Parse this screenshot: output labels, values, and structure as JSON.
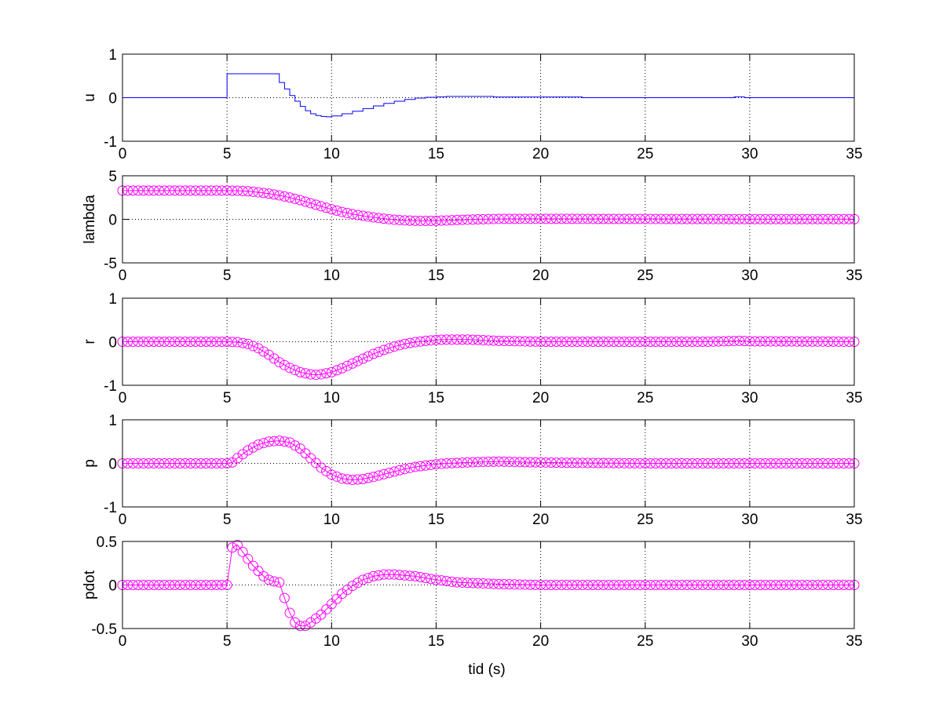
{
  "figure": {
    "background": "#ffffff",
    "xlabel": "tid (s)"
  },
  "chart_data": [
    {
      "type": "line",
      "ylabel": "u",
      "xlim": [
        0,
        35
      ],
      "ylim": [
        -1,
        1
      ],
      "xticks": [
        0,
        5,
        10,
        15,
        20,
        25,
        30,
        35
      ],
      "yticks": [
        -1,
        0,
        1
      ],
      "grid": true,
      "series": [
        {
          "color": "#0000ff",
          "style": "step",
          "marker": "none",
          "x": [
            0,
            5,
            7.5,
            7.75,
            8.0,
            8.25,
            8.5,
            8.75,
            9.0,
            9.25,
            9.5,
            9.75,
            10.0,
            10.5,
            11.0,
            11.5,
            12.0,
            12.5,
            13.0,
            13.5,
            14.0,
            14.5,
            15.0,
            15.5,
            16.0,
            17.75,
            22.0,
            29.25,
            29.75,
            35
          ],
          "y": [
            0,
            0.55,
            0.35,
            0.2,
            0.05,
            -0.08,
            -0.2,
            -0.3,
            -0.37,
            -0.41,
            -0.43,
            -0.44,
            -0.42,
            -0.37,
            -0.31,
            -0.25,
            -0.19,
            -0.13,
            -0.08,
            -0.04,
            -0.01,
            0.01,
            0.02,
            0.03,
            0.03,
            0.015,
            0.0,
            0.02,
            0.0,
            0.0
          ]
        }
      ]
    },
    {
      "type": "line",
      "ylabel": "lambda",
      "xlim": [
        0,
        35
      ],
      "ylim": [
        -5,
        5
      ],
      "xticks": [
        0,
        5,
        10,
        15,
        20,
        25,
        30,
        35
      ],
      "yticks": [
        -5,
        0,
        5
      ],
      "grid": true,
      "series": [
        {
          "color": "#ff00ff",
          "marker": "circle",
          "x": [
            0,
            1,
            2,
            3,
            4,
            5,
            5.5,
            6,
            6.5,
            7,
            7.5,
            8,
            8.5,
            9,
            9.5,
            10,
            10.5,
            11,
            11.5,
            12,
            12.5,
            13,
            13.5,
            14,
            14.5,
            15,
            15.5,
            16,
            16.5,
            17,
            18,
            19,
            20,
            22,
            25,
            28,
            30,
            35
          ],
          "y": [
            3.3,
            3.3,
            3.3,
            3.3,
            3.3,
            3.3,
            3.28,
            3.22,
            3.1,
            2.95,
            2.75,
            2.5,
            2.2,
            1.85,
            1.5,
            1.15,
            0.85,
            0.6,
            0.4,
            0.22,
            0.08,
            -0.05,
            -0.12,
            -0.17,
            -0.18,
            -0.17,
            -0.13,
            -0.08,
            -0.04,
            0.0,
            0.05,
            0.06,
            0.06,
            0.05,
            0.04,
            0.03,
            0.02,
            0.02
          ]
        }
      ]
    },
    {
      "type": "line",
      "ylabel": "r",
      "xlim": [
        0,
        35
      ],
      "ylim": [
        -1,
        1
      ],
      "xticks": [
        0,
        5,
        10,
        15,
        20,
        25,
        30,
        35
      ],
      "yticks": [
        -1,
        0,
        1
      ],
      "grid": true,
      "series": [
        {
          "color": "#ff00ff",
          "marker": "circle",
          "x": [
            0,
            1,
            2,
            3,
            4,
            5,
            5.5,
            6,
            6.5,
            7,
            7.5,
            8,
            8.5,
            9,
            9.3,
            9.6,
            10,
            10.5,
            11,
            11.5,
            12,
            12.5,
            13,
            13.5,
            14,
            14.5,
            15,
            15.5,
            16,
            16.5,
            17,
            17.5,
            18,
            19,
            20,
            22,
            25,
            28,
            29.5,
            30,
            35
          ],
          "y": [
            0,
            0,
            0,
            0,
            0,
            0,
            -0.01,
            -0.05,
            -0.15,
            -0.3,
            -0.47,
            -0.6,
            -0.7,
            -0.75,
            -0.76,
            -0.74,
            -0.7,
            -0.61,
            -0.5,
            -0.39,
            -0.28,
            -0.19,
            -0.11,
            -0.05,
            -0.01,
            0.02,
            0.04,
            0.05,
            0.05,
            0.05,
            0.04,
            0.03,
            0.02,
            0.01,
            0.0,
            0.0,
            0.0,
            0.0,
            0.02,
            0.01,
            0.0
          ]
        }
      ]
    },
    {
      "type": "line",
      "ylabel": "p",
      "xlim": [
        0,
        35
      ],
      "ylim": [
        -1,
        1
      ],
      "xticks": [
        0,
        5,
        10,
        15,
        20,
        25,
        30,
        35
      ],
      "yticks": [
        -1,
        0,
        1
      ],
      "grid": true,
      "series": [
        {
          "color": "#ff00ff",
          "marker": "circle",
          "x": [
            0,
            1,
            2,
            3,
            4,
            5,
            5.25,
            5.5,
            6,
            6.5,
            7,
            7.5,
            8,
            8.5,
            9,
            9.5,
            10,
            10.5,
            11,
            11.5,
            12,
            12.5,
            13,
            13.5,
            14,
            14.5,
            15,
            15.5,
            16,
            17,
            18,
            19,
            20,
            22,
            25,
            30,
            35
          ],
          "y": [
            0,
            0,
            0,
            0,
            0,
            0,
            0.02,
            0.12,
            0.3,
            0.43,
            0.5,
            0.52,
            0.48,
            0.34,
            0.12,
            -0.1,
            -0.26,
            -0.35,
            -0.38,
            -0.36,
            -0.31,
            -0.25,
            -0.19,
            -0.13,
            -0.08,
            -0.05,
            -0.02,
            0.0,
            0.01,
            0.03,
            0.04,
            0.03,
            0.02,
            0.01,
            0.0,
            0.0,
            0.0
          ]
        }
      ]
    },
    {
      "type": "line",
      "ylabel": "pdot",
      "xlim": [
        0,
        35
      ],
      "ylim": [
        -0.5,
        0.5
      ],
      "xticks": [
        0,
        5,
        10,
        15,
        20,
        25,
        30,
        35
      ],
      "yticks": [
        -0.5,
        0,
        0.5
      ],
      "grid": true,
      "series": [
        {
          "color": "#ff00ff",
          "marker": "circle",
          "x": [
            0,
            1,
            2,
            3,
            4,
            5,
            5.25,
            5.5,
            5.75,
            6,
            6.25,
            6.5,
            6.75,
            7,
            7.25,
            7.5,
            7.75,
            8,
            8.25,
            8.5,
            8.75,
            9,
            9.5,
            10,
            10.5,
            11,
            11.5,
            12,
            12.5,
            13,
            13.5,
            14,
            14.5,
            15,
            16,
            17,
            18,
            20,
            22,
            25,
            30,
            35
          ],
          "y": [
            0,
            0,
            0,
            0,
            0,
            0,
            0.43,
            0.46,
            0.38,
            0.3,
            0.22,
            0.16,
            0.1,
            0.06,
            0.04,
            0.03,
            -0.15,
            -0.32,
            -0.43,
            -0.47,
            -0.47,
            -0.43,
            -0.34,
            -0.22,
            -0.1,
            -0.01,
            0.06,
            0.1,
            0.12,
            0.12,
            0.11,
            0.1,
            0.08,
            0.06,
            0.03,
            0.02,
            0.01,
            0.0,
            0.0,
            0.0,
            0.0,
            0.0
          ]
        }
      ]
    }
  ]
}
